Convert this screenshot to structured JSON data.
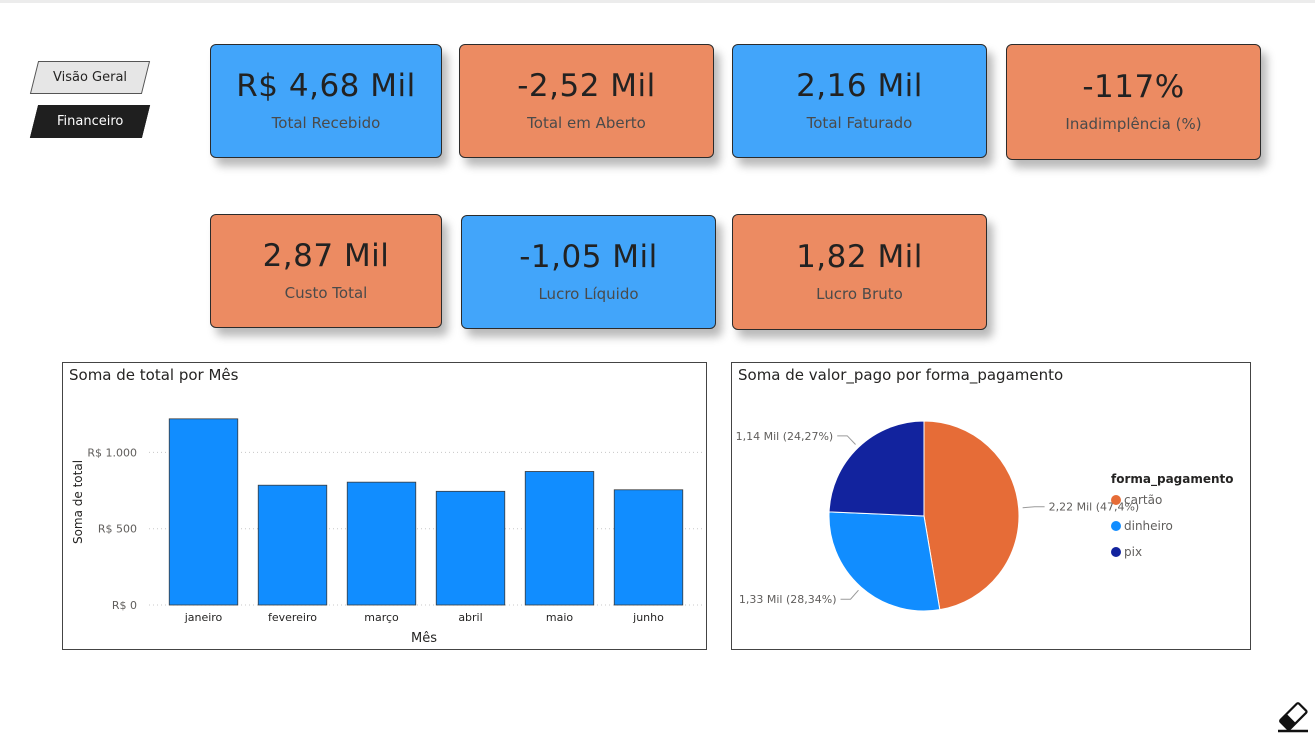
{
  "nav": {
    "overview_label": "Visão Geral",
    "finance_label": "Financeiro"
  },
  "kpis": [
    {
      "value": "R$ 4,68 Mil",
      "label": "Total Recebido",
      "color": "#42a5fa"
    },
    {
      "value": "-2,52 Mil",
      "label": "Total em Aberto",
      "color": "#ec8b62"
    },
    {
      "value": "2,16 Mil",
      "label": "Total Faturado",
      "color": "#42a5fa"
    },
    {
      "value": "-117%",
      "label": "Inadimplência (%)",
      "color": "#ec8b62"
    },
    {
      "value": "2,87 Mil",
      "label": "Custo Total",
      "color": "#ec8b62"
    },
    {
      "value": "-1,05 Mil",
      "label": "Lucro Líquido",
      "color": "#42a5fa"
    },
    {
      "value": "1,82 Mil",
      "label": "Lucro Bruto",
      "color": "#ec8b62"
    }
  ],
  "chart_data": [
    {
      "type": "bar",
      "title": "Soma de total por Mês",
      "xlabel": "Mês",
      "ylabel": "Soma de total",
      "categories": [
        "janeiro",
        "fevereiro",
        "março",
        "abril",
        "maio",
        "junho"
      ],
      "values": [
        1220,
        785,
        805,
        745,
        875,
        755
      ],
      "ylim": [
        0,
        1350
      ],
      "yticks": [
        0,
        500,
        1000
      ],
      "ytick_labels": [
        "R$ 0",
        "R$ 500",
        "R$ 1.000"
      ],
      "grid": true,
      "color": "#118dff"
    },
    {
      "type": "pie",
      "title": "Soma de valor_pago por forma_pagamento",
      "legend_title": "forma_pagamento",
      "legend_position": "right",
      "slices": [
        {
          "label": "cartão",
          "value": 2.22,
          "percent": 47.4,
          "data_label": "2,22 Mil (47,4%)",
          "color": "#e66c37"
        },
        {
          "label": "dinheiro",
          "value": 1.33,
          "percent": 28.34,
          "data_label": "1,33 Mil (28,34%)",
          "color": "#118dff"
        },
        {
          "label": "pix",
          "value": 1.14,
          "percent": 24.27,
          "data_label": "1,14 Mil (24,27%)",
          "color": "#12239e"
        }
      ]
    }
  ],
  "icons": {
    "eraser": "eraser-icon"
  }
}
